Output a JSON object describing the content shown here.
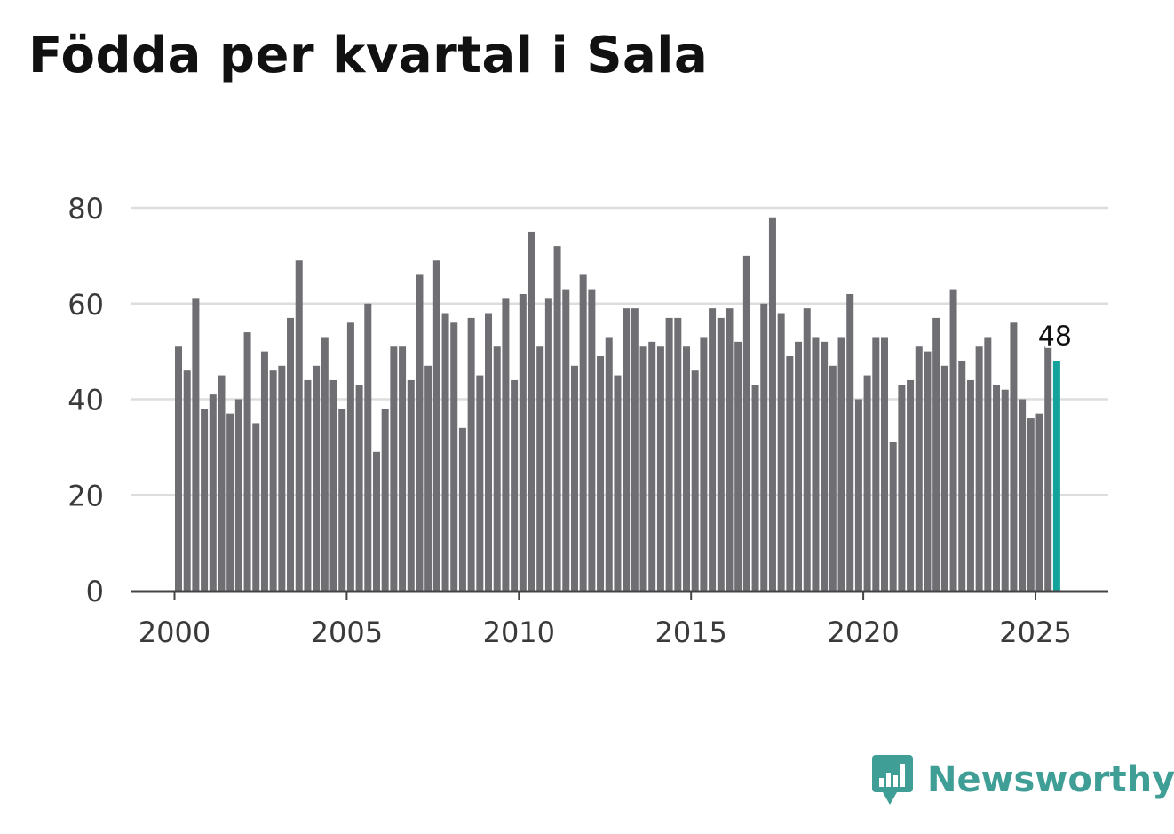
{
  "colors": {
    "bar": "#6f6e73",
    "highlight": "#13a39a",
    "grid": "#dddddd",
    "axis": "#444444",
    "logo": "#3f9e95"
  },
  "brand": {
    "name": "Newsworthy"
  },
  "chart_data": {
    "type": "bar",
    "title": "Födda per kvartal i Sala",
    "xlabel": "",
    "ylabel": "",
    "ylim": [
      0,
      80
    ],
    "yticks": [
      0,
      20,
      40,
      60,
      80
    ],
    "xticks": [
      2000,
      2005,
      2010,
      2015,
      2020,
      2025
    ],
    "grid": true,
    "x_start": 2000,
    "period": "quarter",
    "values": [
      51,
      46,
      61,
      38,
      41,
      45,
      37,
      40,
      54,
      35,
      50,
      46,
      47,
      57,
      69,
      44,
      47,
      53,
      44,
      38,
      56,
      43,
      60,
      29,
      38,
      51,
      51,
      44,
      66,
      47,
      69,
      58,
      56,
      34,
      57,
      45,
      58,
      51,
      61,
      44,
      62,
      75,
      51,
      61,
      72,
      63,
      47,
      66,
      63,
      49,
      53,
      45,
      59,
      59,
      51,
      52,
      51,
      57,
      57,
      51,
      46,
      53,
      59,
      57,
      59,
      52,
      70,
      43,
      60,
      78,
      58,
      49,
      52,
      59,
      53,
      52,
      47,
      53,
      62,
      40,
      45,
      53,
      53,
      31,
      43,
      44,
      51,
      50,
      57,
      47,
      63,
      48,
      44,
      51,
      53,
      43,
      42,
      56,
      40,
      36,
      37,
      51,
      48
    ],
    "highlight_last": true,
    "annotations": [
      {
        "label": "48",
        "index": 102
      }
    ]
  }
}
